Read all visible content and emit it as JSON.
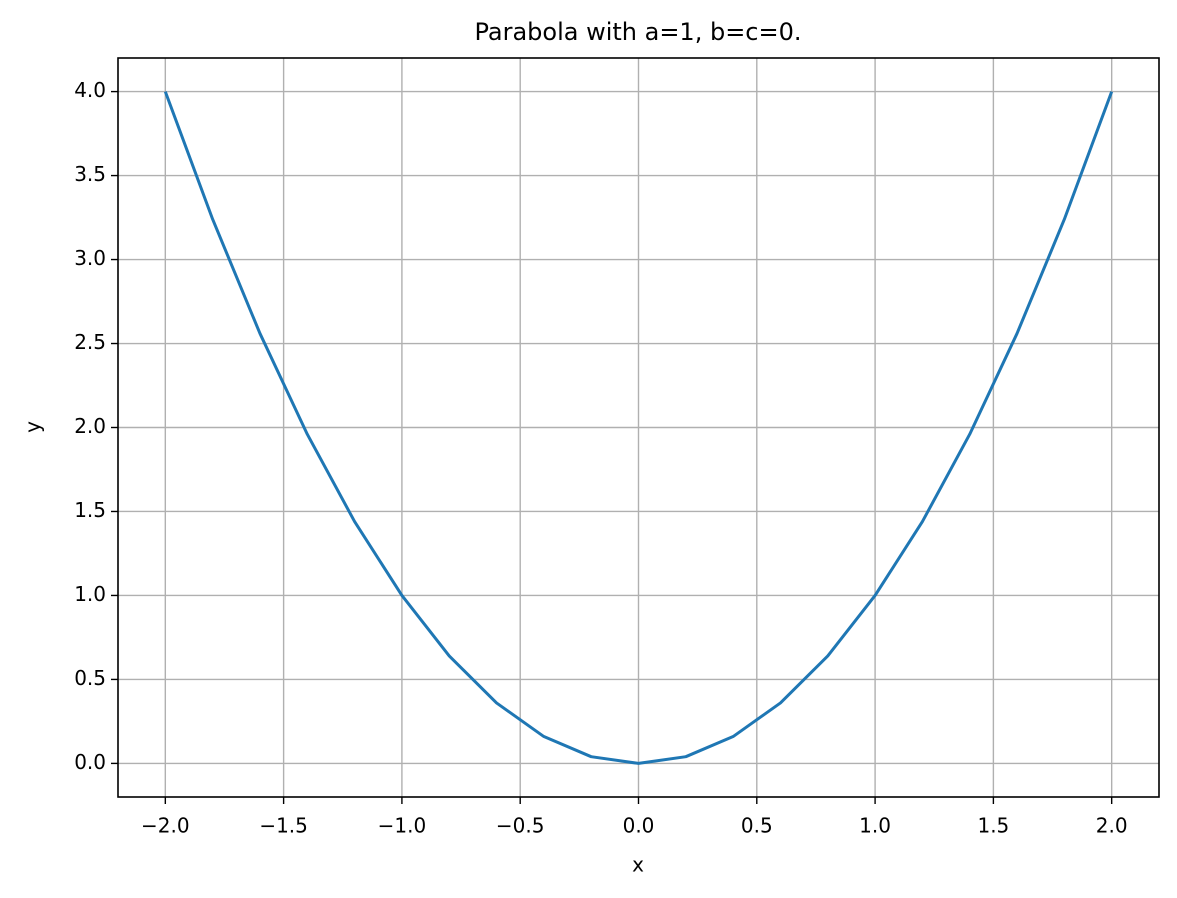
{
  "chart_data": {
    "type": "line",
    "title": "Parabola with a=1, b=c=0.",
    "x_label": "x",
    "y_label": "y",
    "x": [
      -2,
      -1.8,
      -1.6,
      -1.4,
      -1.2,
      -1,
      -0.8,
      -0.6,
      -0.4,
      -0.2,
      0,
      0.2,
      0.4,
      0.6,
      0.8,
      1,
      1.2,
      1.4,
      1.6,
      1.8,
      2
    ],
    "series": [
      {
        "name": "y",
        "color": "#1f77b4",
        "values": [
          4,
          3.24,
          2.56,
          1.96,
          1.44,
          1,
          0.64,
          0.36,
          0.16,
          0.04,
          0,
          0.04,
          0.16,
          0.36,
          0.64,
          1,
          1.44,
          1.96,
          2.56,
          3.24,
          4
        ]
      }
    ],
    "xlim": [
      -2.2,
      2.2
    ],
    "ylim": [
      -0.2,
      4.2
    ],
    "xticks": [
      {
        "value": -2,
        "label": "−2.0"
      },
      {
        "value": -1.5,
        "label": "−1.5"
      },
      {
        "value": -1,
        "label": "−1.0"
      },
      {
        "value": -0.5,
        "label": "−0.5"
      },
      {
        "value": 0,
        "label": "0.0"
      },
      {
        "value": 0.5,
        "label": "0.5"
      },
      {
        "value": 1,
        "label": "1.0"
      },
      {
        "value": 1.5,
        "label": "1.5"
      },
      {
        "value": 2,
        "label": "2.0"
      }
    ],
    "yticks": [
      {
        "value": 0,
        "label": "0.0"
      },
      {
        "value": 0.5,
        "label": "0.5"
      },
      {
        "value": 1,
        "label": "1.0"
      },
      {
        "value": 1.5,
        "label": "1.5"
      },
      {
        "value": 2,
        "label": "2.0"
      },
      {
        "value": 2.5,
        "label": "2.5"
      },
      {
        "value": 3,
        "label": "3.0"
      },
      {
        "value": 3.5,
        "label": "3.5"
      },
      {
        "value": 4,
        "label": "4.0"
      }
    ],
    "grid": true
  }
}
